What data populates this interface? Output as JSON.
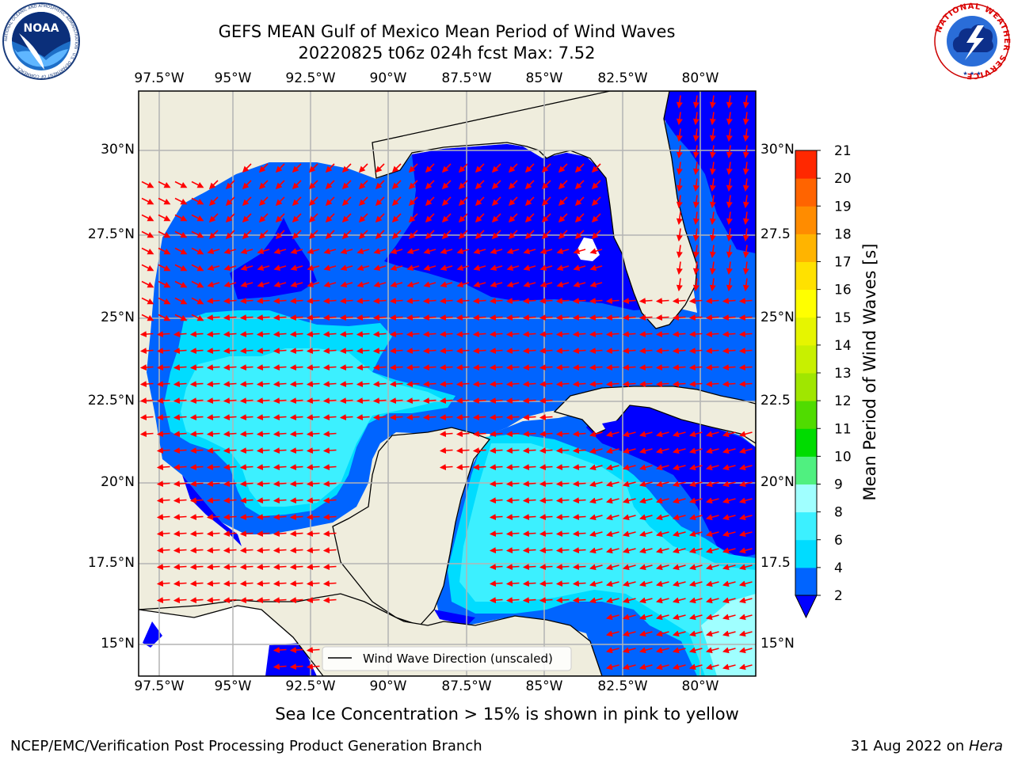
{
  "title": {
    "line1": "GEFS MEAN Gulf of Mexico Mean Period of Wind Waves",
    "line2": "20220825 t06z 024h fcst   Max: 7.52"
  },
  "map": {
    "lon_labels": [
      "97.5°W",
      "95°W",
      "92.5°W",
      "90°W",
      "87.5°W",
      "85°W",
      "82.5°W",
      "80°W"
    ],
    "lat_labels_left": [
      "30°N",
      "27.5°N",
      "25°N",
      "22.5°N",
      "20°N",
      "17.5°N",
      "15°N"
    ],
    "lat_labels_right": [
      "30°N",
      "27.5",
      "25°N",
      "22.5",
      "20°N",
      "17.5",
      "15°N"
    ],
    "legend_text": "Wind Wave Direction (unscaled)",
    "arrow_color": "#ff0000"
  },
  "colorbar": {
    "label": "Mean Period of Wind Waves [s]",
    "ticks": [
      "2",
      "4",
      "6",
      "8",
      "9",
      "10",
      "11",
      "12",
      "13",
      "14",
      "15",
      "16",
      "17",
      "18",
      "19",
      "20",
      "21"
    ],
    "colors": [
      "#0064ff",
      "#00dcff",
      "#3cf0ff",
      "#a0ffff",
      "#50f080",
      "#00dc00",
      "#50dc00",
      "#a0e600",
      "#c8f000",
      "#e6f500",
      "#ffff00",
      "#ffe100",
      "#ffb400",
      "#ff8c00",
      "#ff6400",
      "#ff2800"
    ],
    "under_color": "#0000ff"
  },
  "logos": {
    "noaa_text": "NOAA",
    "noaa_ring": "NATIONAL OCEANIC AND ATMOSPHERIC ADMINISTRATION · U.S. DEPARTMENT OF COMMERCE",
    "nws_ring": "NATIONAL WEATHER SERVICE"
  },
  "subtitle": "Sea Ice Concentration > 15% is shown in pink to yellow",
  "footer": {
    "left": "NCEP/EMC/Verification Post Processing Product Generation Branch",
    "right_prefix": "31 Aug 2022 on ",
    "right_host": "Hera"
  }
}
